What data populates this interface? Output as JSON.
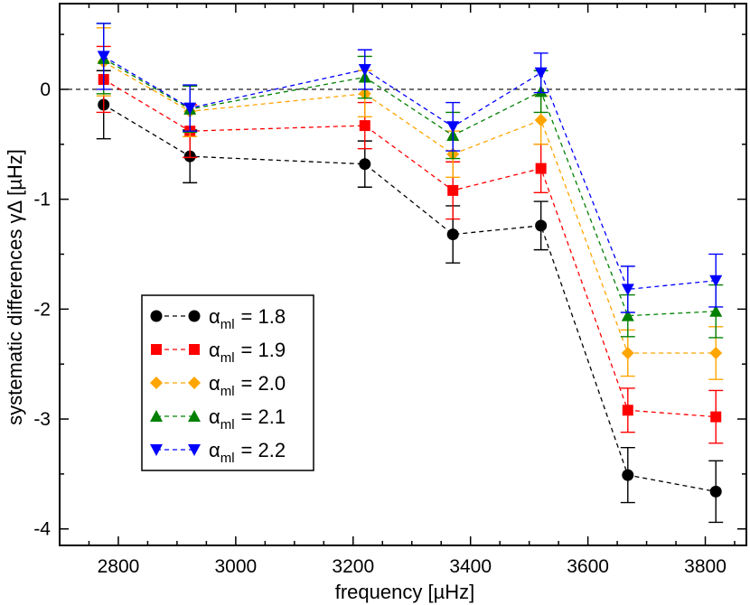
{
  "chart_data": {
    "type": "line",
    "xlabel": "frequency [µHz]",
    "ylabel": "systematic differences γΔ  [µHz]",
    "xlim": [
      2700,
      3870
    ],
    "ylim": [
      -4.15,
      0.78
    ],
    "x_ticks": [
      2800,
      3000,
      3200,
      3400,
      3600,
      3800
    ],
    "y_ticks": [
      -4,
      -3,
      -2,
      -1,
      0
    ],
    "reference_line": {
      "y": 0,
      "style": "dashed"
    },
    "x": [
      2775,
      2922,
      3220,
      3370,
      3520,
      3668,
      3818
    ],
    "series": [
      {
        "name_symbol": "α",
        "name_sub": "ml",
        "name_value": "= 1.8",
        "color": "#000000",
        "marker": "circle",
        "values": [
          -0.14,
          -0.61,
          -0.68,
          -1.32,
          -1.24,
          -3.51,
          -3.66
        ],
        "errors": [
          0.31,
          0.24,
          0.21,
          0.26,
          0.22,
          0.25,
          0.28
        ]
      },
      {
        "name_symbol": "α",
        "name_sub": "ml",
        "name_value": "= 1.9",
        "color": "#ff0000",
        "marker": "square",
        "values": [
          0.09,
          -0.38,
          -0.33,
          -0.92,
          -0.72,
          -2.92,
          -2.98
        ],
        "errors": [
          0.3,
          0.24,
          0.21,
          0.26,
          0.22,
          0.2,
          0.24
        ]
      },
      {
        "name_symbol": "α",
        "name_sub": "ml",
        "name_value": "= 2.0",
        "color": "#ffa500",
        "marker": "diamond",
        "values": [
          0.25,
          -0.2,
          -0.04,
          -0.59,
          -0.28,
          -2.4,
          -2.4
        ],
        "errors": [
          0.31,
          0.23,
          0.21,
          0.21,
          0.22,
          0.21,
          0.24
        ]
      },
      {
        "name_symbol": "α",
        "name_sub": "ml",
        "name_value": "= 2.1",
        "color": "#008000",
        "marker": "triangle-up",
        "values": [
          0.28,
          -0.18,
          0.11,
          -0.42,
          -0.02,
          -2.06,
          -2.02
        ],
        "errors": [
          0.32,
          0.21,
          0.19,
          0.21,
          0.19,
          0.19,
          0.24
        ]
      },
      {
        "name_symbol": "α",
        "name_sub": "ml",
        "name_value": "= 2.2",
        "color": "#0000ff",
        "marker": "triangle-down",
        "values": [
          0.3,
          -0.17,
          0.18,
          -0.34,
          0.15,
          -1.82,
          -1.74
        ],
        "errors": [
          0.3,
          0.21,
          0.18,
          0.22,
          0.18,
          0.21,
          0.24
        ]
      }
    ],
    "grid": false,
    "legend_position": "lower-left inside plot"
  }
}
